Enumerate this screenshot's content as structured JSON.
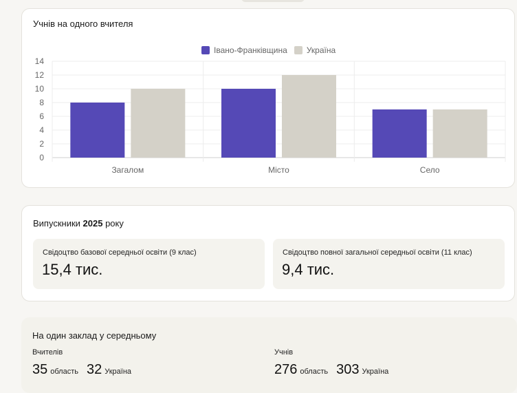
{
  "chart_card": {
    "title": "Учнів на одного вчителя"
  },
  "chart_data": {
    "type": "bar",
    "categories": [
      "Загалом",
      "Місто",
      "Село"
    ],
    "series": [
      {
        "name": "Івано-Франківщина",
        "values": [
          8,
          10,
          7
        ],
        "color": "#5549b6"
      },
      {
        "name": "Україна",
        "values": [
          10,
          12,
          7
        ],
        "color": "#d4d1c8"
      }
    ],
    "ylim": [
      0,
      14
    ],
    "yticks": [
      "0",
      "2",
      "4",
      "6",
      "8",
      "10",
      "12",
      "14"
    ],
    "legend_position": "top-center",
    "grid": true
  },
  "graduates": {
    "title_prefix": "Випускники",
    "title_year": "2025",
    "title_suffix": "року",
    "items": [
      {
        "label": "Свідоцтво базової середньої освіти (9 клас)",
        "value": "15,4 тис."
      },
      {
        "label": "Свідоцтво повної загальної середньої освіти (11 клас)",
        "value": "9,4 тис."
      }
    ]
  },
  "per_school": {
    "title": "На один заклад у середньому",
    "teachers": {
      "label": "Вчителів",
      "region_value": "35",
      "region_label": "область",
      "country_value": "32",
      "country_label": "Україна"
    },
    "students": {
      "label": "Учнів",
      "region_value": "276",
      "region_label": "область",
      "country_value": "303",
      "country_label": "Україна"
    }
  }
}
